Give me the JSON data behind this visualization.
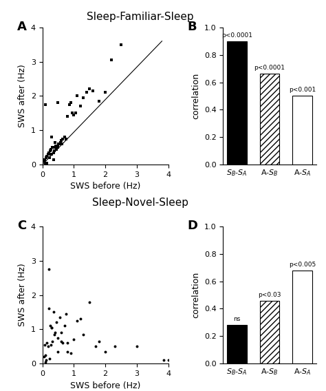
{
  "title_top": "Sleep-Familiar-Sleep",
  "title_bottom": "Sleep-Novel-Sleep",
  "panel_A_scatter": {
    "x": [
      0.05,
      0.08,
      0.1,
      0.12,
      0.15,
      0.18,
      0.2,
      0.22,
      0.25,
      0.28,
      0.3,
      0.32,
      0.35,
      0.38,
      0.4,
      0.42,
      0.45,
      0.48,
      0.5,
      0.52,
      0.55,
      0.58,
      0.6,
      0.62,
      0.65,
      0.7,
      0.75,
      0.8,
      0.85,
      0.9,
      0.95,
      1.0,
      1.05,
      1.1,
      1.2,
      1.3,
      1.4,
      1.5,
      1.6,
      1.8,
      2.0,
      2.2,
      2.5,
      0.15,
      0.25,
      0.35,
      0.4,
      0.5,
      0.1,
      0.3
    ],
    "y": [
      0.1,
      0.15,
      0.05,
      0.2,
      0.25,
      0.3,
      0.35,
      0.2,
      0.4,
      0.45,
      0.3,
      0.5,
      0.35,
      0.4,
      0.5,
      0.55,
      0.45,
      0.5,
      0.55,
      0.6,
      0.6,
      0.65,
      0.7,
      0.6,
      0.75,
      0.8,
      0.75,
      1.4,
      1.75,
      1.8,
      1.5,
      1.45,
      1.5,
      2.0,
      1.7,
      1.95,
      2.1,
      2.2,
      2.15,
      1.85,
      2.1,
      3.05,
      3.5,
      0.05,
      0.3,
      0.15,
      0.65,
      1.8,
      1.75,
      0.8
    ]
  },
  "panel_A_line": {
    "x": [
      0,
      3.8
    ],
    "y": [
      0,
      3.6
    ]
  },
  "panel_B_bars": {
    "categories": [
      "$S_B$-$S_A$",
      "A-$S_B$",
      "A-$S_A$"
    ],
    "values": [
      0.9,
      0.665,
      0.5
    ],
    "colors": [
      "black",
      "white",
      "white"
    ],
    "hatches": [
      "",
      "////",
      ""
    ],
    "pvalues": [
      "p<0.0001",
      "p<0.0001",
      "p<0.001"
    ]
  },
  "panel_C_scatter": {
    "x": [
      0.05,
      0.08,
      0.1,
      0.12,
      0.15,
      0.18,
      0.2,
      0.22,
      0.25,
      0.28,
      0.3,
      0.32,
      0.35,
      0.38,
      0.4,
      0.45,
      0.5,
      0.55,
      0.6,
      0.65,
      0.7,
      0.75,
      0.8,
      0.9,
      1.0,
      1.1,
      1.2,
      1.3,
      1.5,
      1.7,
      1.8,
      2.0,
      2.3,
      3.0,
      4.0,
      0.1,
      0.2,
      0.3,
      0.5,
      0.6,
      0.8,
      3.85
    ],
    "y": [
      0.2,
      0.55,
      0.25,
      0.1,
      0.6,
      0.5,
      1.6,
      0.15,
      1.1,
      0.55,
      1.05,
      0.65,
      1.5,
      0.85,
      0.9,
      1.2,
      0.75,
      1.35,
      0.9,
      0.6,
      1.1,
      1.45,
      0.6,
      0.3,
      0.7,
      1.25,
      1.3,
      0.85,
      1.8,
      0.5,
      0.65,
      0.35,
      0.5,
      0.5,
      0.1,
      0.05,
      2.75,
      1.05,
      0.35,
      0.65,
      0.35,
      0.1
    ]
  },
  "panel_D_bars": {
    "categories": [
      "$S_B$-$S_A$",
      "A-$S_B$",
      "A-$S_A$"
    ],
    "values": [
      0.28,
      0.46,
      0.68
    ],
    "colors": [
      "black",
      "white",
      "white"
    ],
    "hatches": [
      "",
      "////",
      ""
    ],
    "pvalues": [
      "ns",
      "p<0.03",
      "p<0.005"
    ]
  },
  "xlim": [
    0,
    4
  ],
  "ylim": [
    0,
    4
  ],
  "bar_ylim": [
    0,
    1
  ],
  "bar_yticks": [
    0,
    0.2,
    0.4,
    0.6,
    0.8,
    1.0
  ],
  "xlabel": "SWS before (Hz)",
  "ylabel": "SWS after (Hz)",
  "bar_ylabel": "correlation",
  "tick_fontsize": 8,
  "label_fontsize": 9,
  "title_fontsize": 11
}
